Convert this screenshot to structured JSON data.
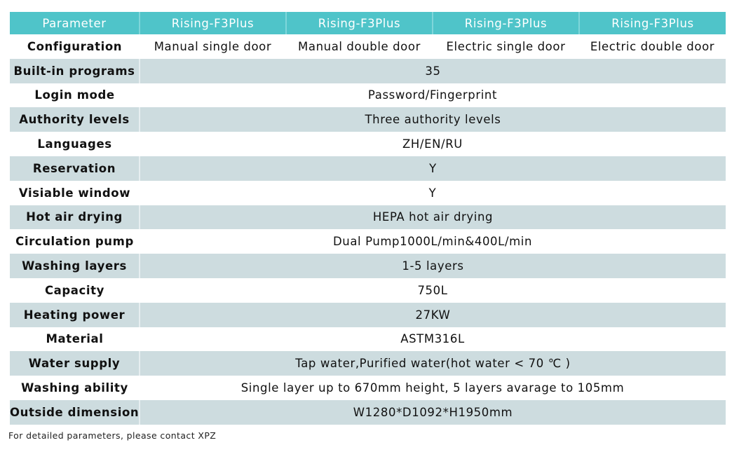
{
  "colors": {
    "header": "#4fc4c9",
    "stripe": "#cddcdf"
  },
  "header": [
    "Parameter",
    "Rising-F3Plus",
    "Rising-F3Plus",
    "Rising-F3Plus",
    "Rising-F3Plus"
  ],
  "configuration": {
    "label": "Configuration",
    "values": [
      "Manual single door",
      "Manual double door",
      "Electric single door",
      "Electric double door"
    ]
  },
  "rows": [
    {
      "label": "Built-in programs",
      "value": "35"
    },
    {
      "label": "Login mode",
      "value": "Password/Fingerprint"
    },
    {
      "label": "Authority levels",
      "value": "Three authority levels"
    },
    {
      "label": "Languages",
      "value": "ZH/EN/RU"
    },
    {
      "label": "Reservation",
      "value": "Y"
    },
    {
      "label": "Visiable window",
      "value": "Y"
    },
    {
      "label": "Hot air drying",
      "value": "HEPA hot air drying"
    },
    {
      "label": "Circulation pump",
      "value": "Dual Pump1000L/min&400L/min"
    },
    {
      "label": "Washing layers",
      "value": "1-5 layers"
    },
    {
      "label": "Capacity",
      "value": "750L"
    },
    {
      "label": "Heating power",
      "value": "27KW"
    },
    {
      "label": "Material",
      "value": "ASTM316L"
    },
    {
      "label": "Water supply",
      "value": "Tap water,Purified water(hot water < 70 ℃ )"
    },
    {
      "label": "Washing ability",
      "value": "Single layer up to 670mm height, 5 layers avarage to 105mm"
    },
    {
      "label": "Outside dimension",
      "value": "W1280*D1092*H1950mm"
    }
  ],
  "note": "For detailed parameters, please contact XPZ"
}
